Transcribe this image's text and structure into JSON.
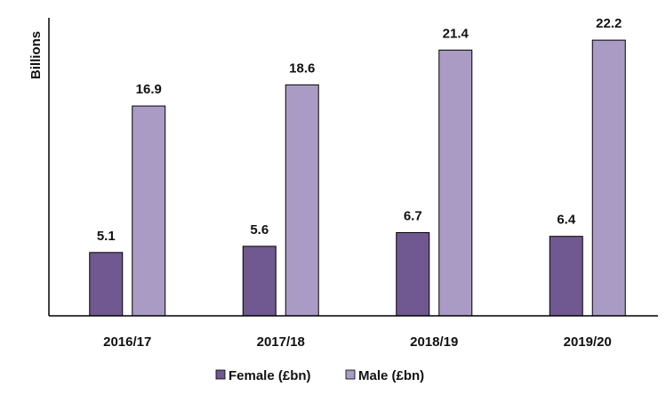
{
  "chart_data": {
    "type": "bar",
    "title": "",
    "xlabel": "",
    "ylabel": "Billions",
    "categories": [
      "2016/17",
      "2017/18",
      "2018/19",
      "2019/20"
    ],
    "series": [
      {
        "name": "Female (£bn)",
        "values": [
          5.1,
          5.6,
          6.7,
          6.4
        ],
        "color": "#6f5990"
      },
      {
        "name": "Male (£bn)",
        "values": [
          16.9,
          18.6,
          21.4,
          22.2
        ],
        "color": "#a99bc3"
      }
    ],
    "ylim": [
      0,
      24
    ],
    "grid": false,
    "legend_position": "bottom",
    "data_labels": true
  }
}
